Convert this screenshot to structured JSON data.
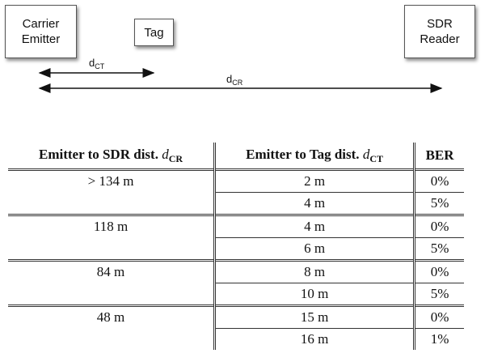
{
  "diagram": {
    "carrier_label_line1": "Carrier",
    "carrier_label_line2": "Emitter",
    "tag_label": "Tag",
    "sdr_label_line1": "SDR",
    "sdr_label_line2": "Reader",
    "dct_label_main": "d",
    "dct_label_sub": "CT",
    "dcr_label_main": "d",
    "dcr_label_sub": "CR"
  },
  "table": {
    "headers": {
      "col1_text": "Emitter to SDR dist.",
      "col1_var": "d",
      "col1_sub": "CR",
      "col2_text": "Emitter to Tag dist.",
      "col2_var": "d",
      "col2_sub": "CT",
      "col3_text": "BER"
    },
    "groups": [
      {
        "sdr_dist": "> 134 m",
        "rows": [
          {
            "tag_dist": "2 m",
            "ber": "0%"
          },
          {
            "tag_dist": "4 m",
            "ber": "5%"
          }
        ]
      },
      {
        "sdr_dist": "118 m",
        "rows": [
          {
            "tag_dist": "4 m",
            "ber": "0%"
          },
          {
            "tag_dist": "6 m",
            "ber": "5%"
          }
        ]
      },
      {
        "sdr_dist": "84 m",
        "rows": [
          {
            "tag_dist": "8 m",
            "ber": "0%"
          },
          {
            "tag_dist": "10 m",
            "ber": "5%"
          }
        ]
      },
      {
        "sdr_dist": "48 m",
        "rows": [
          {
            "tag_dist": "15 m",
            "ber": "0%"
          },
          {
            "tag_dist": "16 m",
            "ber": "1%"
          }
        ]
      }
    ]
  }
}
